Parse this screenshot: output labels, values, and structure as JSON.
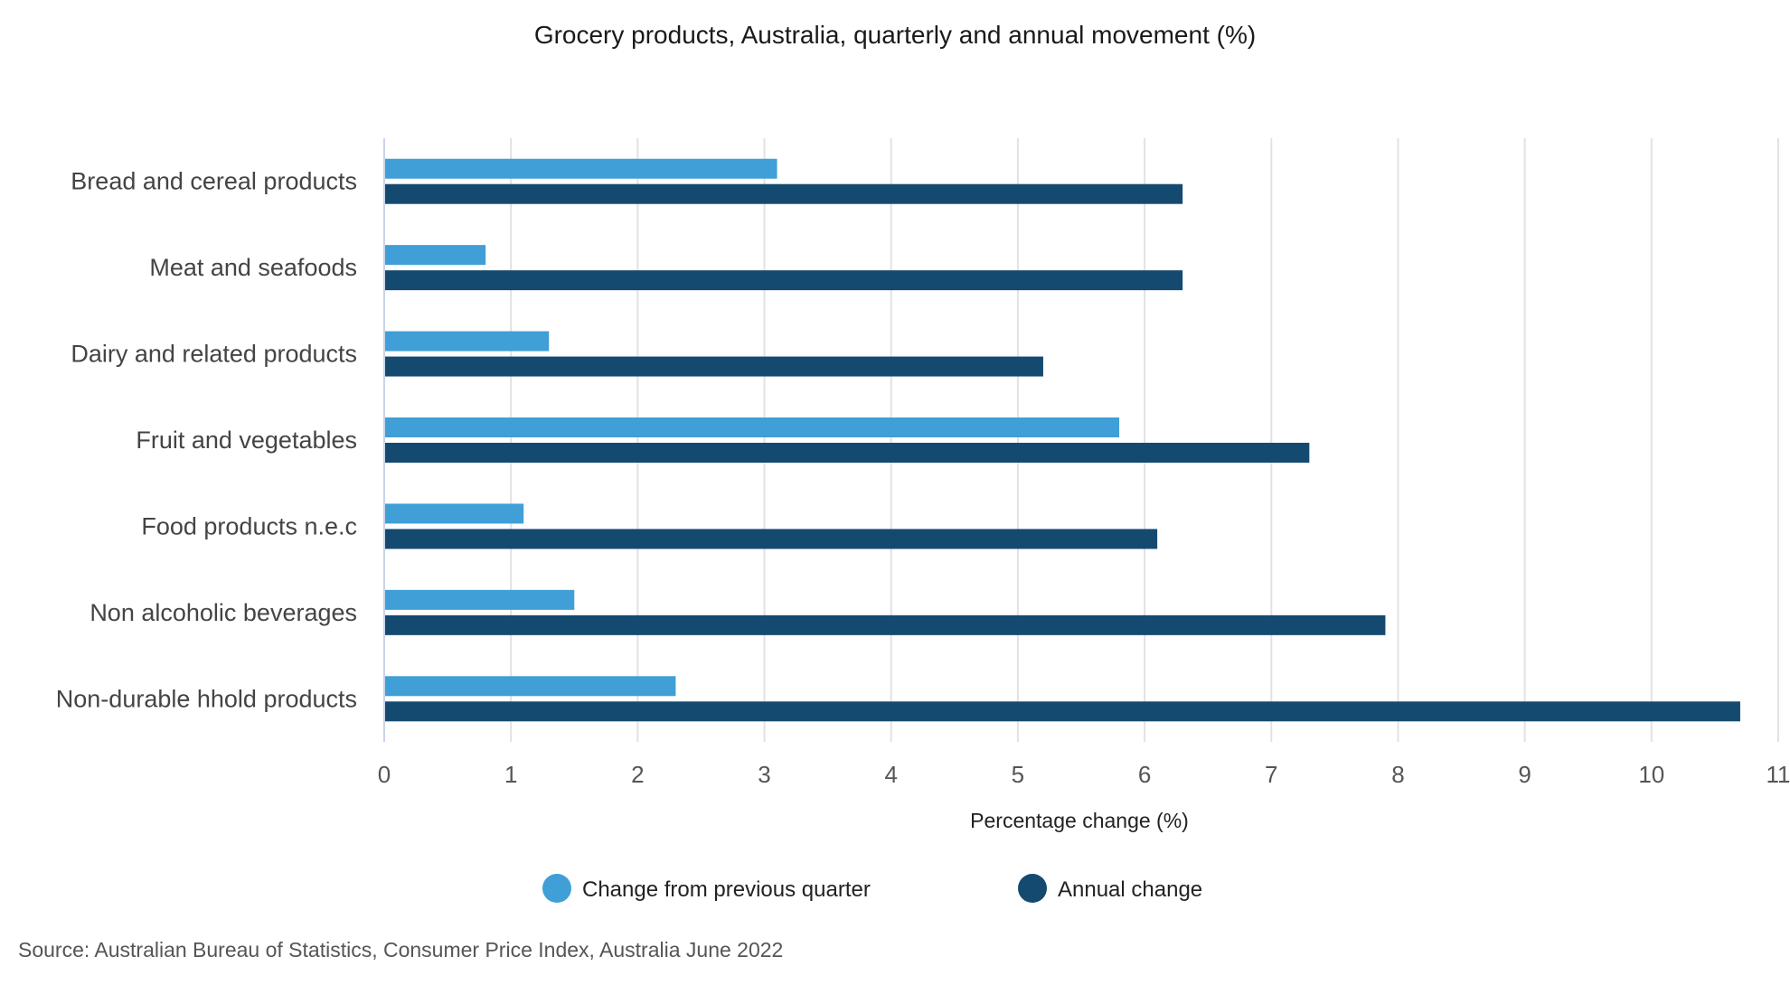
{
  "chart_data": {
    "type": "bar",
    "orientation": "horizontal",
    "title": "Grocery products, Australia, quarterly and annual movement (%)",
    "xlabel": "Percentage change (%)",
    "ylabel": "",
    "xlim": [
      0,
      11
    ],
    "ticks": [
      "0",
      "1",
      "2",
      "3",
      "4",
      "5",
      "6",
      "7",
      "8",
      "9",
      "10",
      "11"
    ],
    "grid": true,
    "legend_position": "bottom",
    "categories": [
      "Bread and cereal products",
      "Meat and seafoods",
      "Dairy and related products",
      "Fruit and vegetables",
      "Food products n.e.c",
      "Non alcoholic beverages",
      "Non-durable hhold products"
    ],
    "series": [
      {
        "name": "Change from previous quarter",
        "color": "#3f9fd6",
        "values": [
          3.1,
          0.8,
          1.3,
          5.8,
          1.1,
          1.5,
          2.3
        ]
      },
      {
        "name": "Annual change",
        "color": "#154a70",
        "values": [
          6.3,
          6.3,
          5.2,
          7.3,
          6.1,
          7.9,
          10.7
        ]
      }
    ],
    "source": "Source: Australian Bureau of Statistics, Consumer Price Index, Australia June 2022"
  }
}
